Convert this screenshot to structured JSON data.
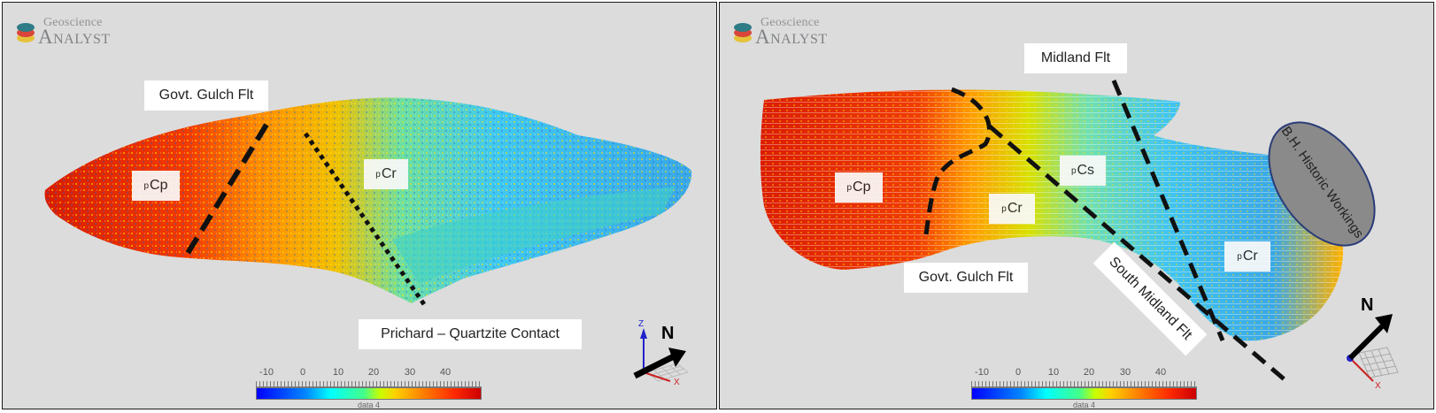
{
  "brand": {
    "sub": "Geoscience",
    "main": "Analyst"
  },
  "left": {
    "labels": {
      "govt_gulch": "Govt. Gulch Flt",
      "prichard": "Prichard – Quartzite Contact"
    },
    "units": [
      {
        "sub": "p",
        "text": "Cp"
      },
      {
        "sub": "p",
        "text": "Cr"
      }
    ],
    "axes": {
      "z": "Z",
      "north": "N",
      "x": "X"
    }
  },
  "right": {
    "labels": {
      "midland": "Midland Flt",
      "govt_gulch": "Govt. Gulch Flt",
      "south_midland": "South Midland Flt",
      "historic": "B.H. Historic Workings"
    },
    "units": [
      {
        "sub": "p",
        "text": "Cp"
      },
      {
        "sub": "p",
        "text": "Cs"
      },
      {
        "sub": "p",
        "text": "Cr"
      },
      {
        "sub": "p",
        "text": "Cr"
      }
    ],
    "axes": {
      "north": "N",
      "x": "X"
    }
  },
  "colorbar": {
    "ticks": [
      "-10",
      "0",
      "10",
      "20",
      "30",
      "40"
    ],
    "title": "data 4",
    "colors": [
      "#0000ff",
      "#00ffff",
      "#c8ff00",
      "#ff7a00",
      "#cc0000"
    ]
  }
}
